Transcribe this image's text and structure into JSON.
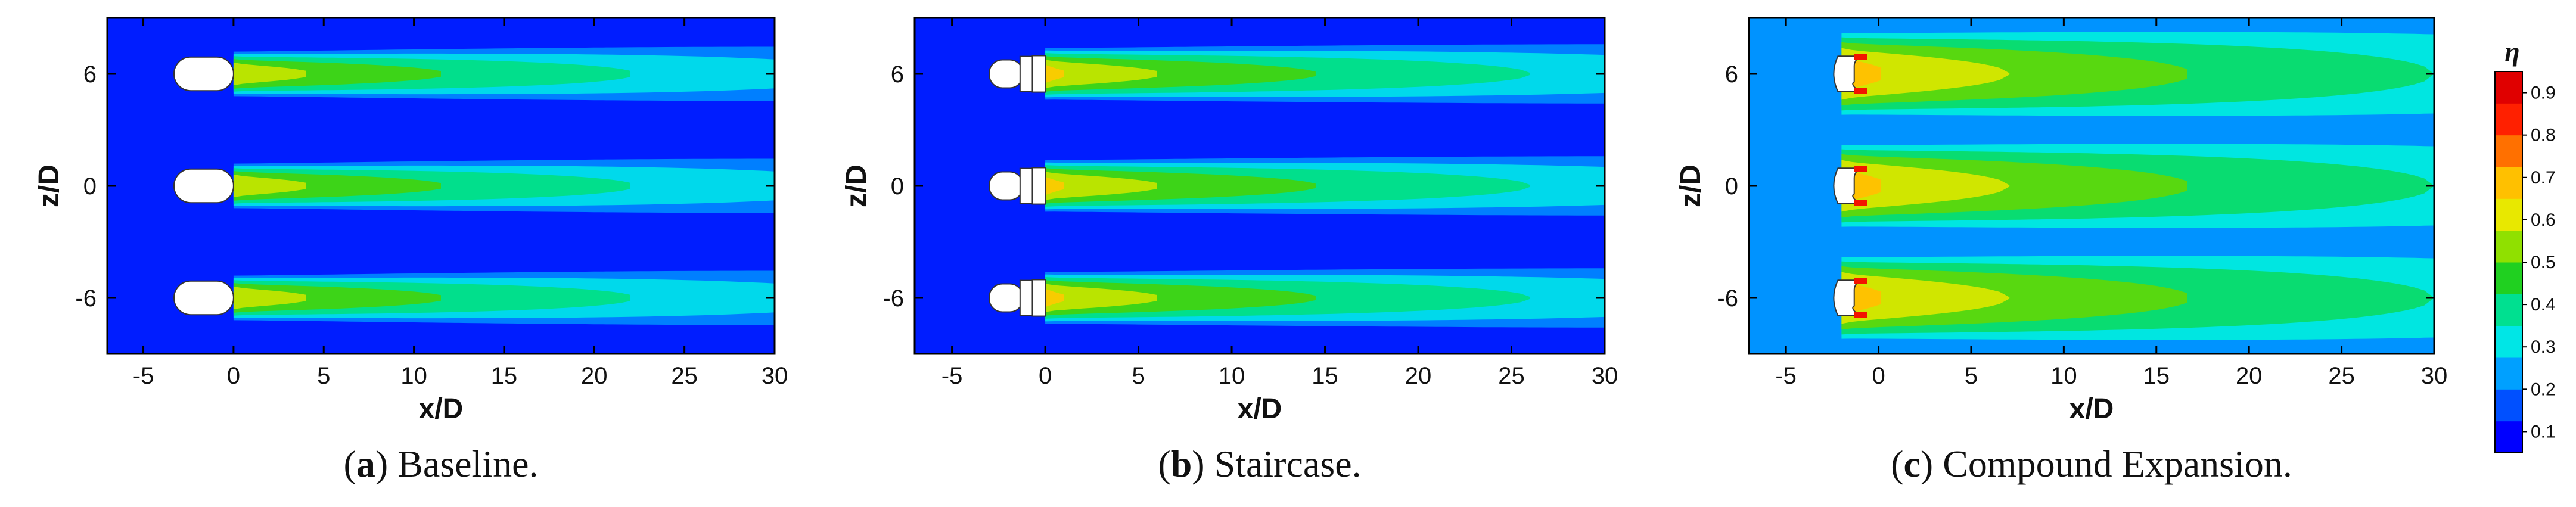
{
  "chart_data": [
    {
      "type": "heatmap",
      "panel_letter": "a",
      "caption": "Baseline.",
      "xlabel": "x/D",
      "ylabel": "z/D",
      "xlim": [
        -7,
        30
      ],
      "ylim": [
        -9,
        9
      ],
      "xticks": [
        -5,
        0,
        5,
        10,
        15,
        20,
        25,
        30
      ],
      "yticks": [
        -6,
        0,
        6
      ],
      "hole_shape": "baseline",
      "hole_rows_z": [
        -6,
        0,
        6
      ],
      "jet_start_x": 0,
      "jet_peak": 0.72,
      "jet_far": 0.32,
      "jet_halfwidth_near": 1.3,
      "jet_halfwidth_far": 1.9,
      "background": 0.08
    },
    {
      "type": "heatmap",
      "panel_letter": "b",
      "caption": "Staircase.",
      "xlabel": "x/D",
      "ylabel": "z/D",
      "xlim": [
        -7,
        30
      ],
      "ylim": [
        -9,
        9
      ],
      "xticks": [
        -5,
        0,
        5,
        10,
        15,
        20,
        25,
        30
      ],
      "yticks": [
        -6,
        0,
        6
      ],
      "hole_shape": "staircase",
      "hole_rows_z": [
        -6,
        0,
        6
      ],
      "jet_start_x": 0,
      "jet_peak": 0.75,
      "jet_far": 0.35,
      "jet_halfwidth_near": 1.5,
      "jet_halfwidth_far": 2.0,
      "background": 0.08
    },
    {
      "type": "heatmap",
      "panel_letter": "c",
      "caption": "Compound Expansion.",
      "xlabel": "x/D",
      "ylabel": "z/D",
      "xlim": [
        -7,
        30
      ],
      "ylim": [
        -9,
        9
      ],
      "xticks": [
        -5,
        0,
        5,
        10,
        15,
        20,
        25,
        30
      ],
      "yticks": [
        -6,
        0,
        6
      ],
      "hole_shape": "compound",
      "hole_rows_z": [
        -6,
        0,
        6
      ],
      "jet_start_x": -2,
      "jet_peak": 0.8,
      "jet_far": 0.4,
      "jet_halfwidth_near": 2.4,
      "jet_halfwidth_far": 3.0,
      "background": 0.2
    }
  ],
  "colorbar": {
    "title": "η",
    "min": 0.05,
    "max": 0.95,
    "ticks": [
      "0.1",
      "0.2",
      "0.3",
      "0.4",
      "0.5",
      "0.6",
      "0.7",
      "0.8",
      "0.9"
    ],
    "colormap": [
      "#0000ff",
      "#0050ff",
      "#00a0ff",
      "#00e6e6",
      "#00e090",
      "#20d020",
      "#90e000",
      "#e8e800",
      "#ffc000",
      "#ff7000",
      "#ff2000",
      "#e00000"
    ]
  }
}
